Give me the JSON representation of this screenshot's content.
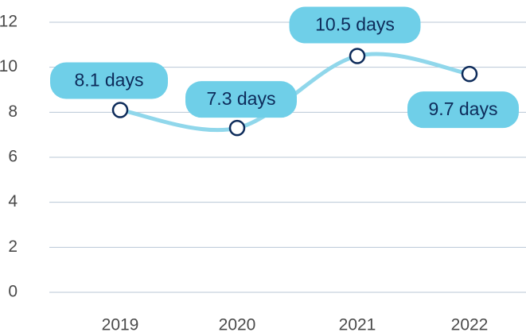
{
  "chart_data": {
    "type": "line",
    "categories": [
      "2019",
      "2020",
      "2021",
      "2022"
    ],
    "series": [
      {
        "color": "#90d7eb",
        "values": [
          8.1,
          7.3,
          10.5,
          9.7
        ],
        "value_labels": [
          "8.1 days",
          "7.3 days",
          "10.5 days",
          "9.7 days"
        ]
      }
    ],
    "label_color": "#6fcfe8",
    "marker_color": "#0d2b5a",
    "ylim": [
      0,
      12
    ],
    "yticks": [
      0,
      2,
      4,
      6,
      8,
      10,
      12
    ],
    "grid": true
  }
}
